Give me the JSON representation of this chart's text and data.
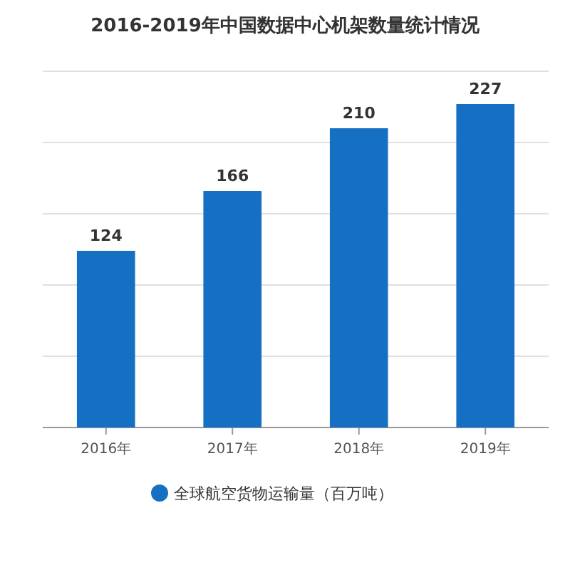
{
  "chart_data": {
    "type": "bar",
    "title": "2016-2019年中国数据中心机架数量统计情况",
    "categories": [
      "2016年",
      "2017年",
      "2018年",
      "2019年"
    ],
    "series": [
      {
        "name": "全球航空货物运输量（百万吨）",
        "color": "#1570c4",
        "values": [
          124,
          166,
          210,
          227
        ]
      }
    ],
    "ylim": [
      0,
      250
    ],
    "yticks": [
      {
        "value": 0,
        "label": null
      },
      {
        "value": 50,
        "label": null
      },
      {
        "value": 100,
        "label": null
      },
      {
        "value": 150,
        "label": null
      },
      {
        "value": 200,
        "label": null
      },
      {
        "value": 250,
        "label": null
      }
    ],
    "tick_labels": "x",
    "grid": "y",
    "legend": "bottom",
    "data_labels": true
  }
}
